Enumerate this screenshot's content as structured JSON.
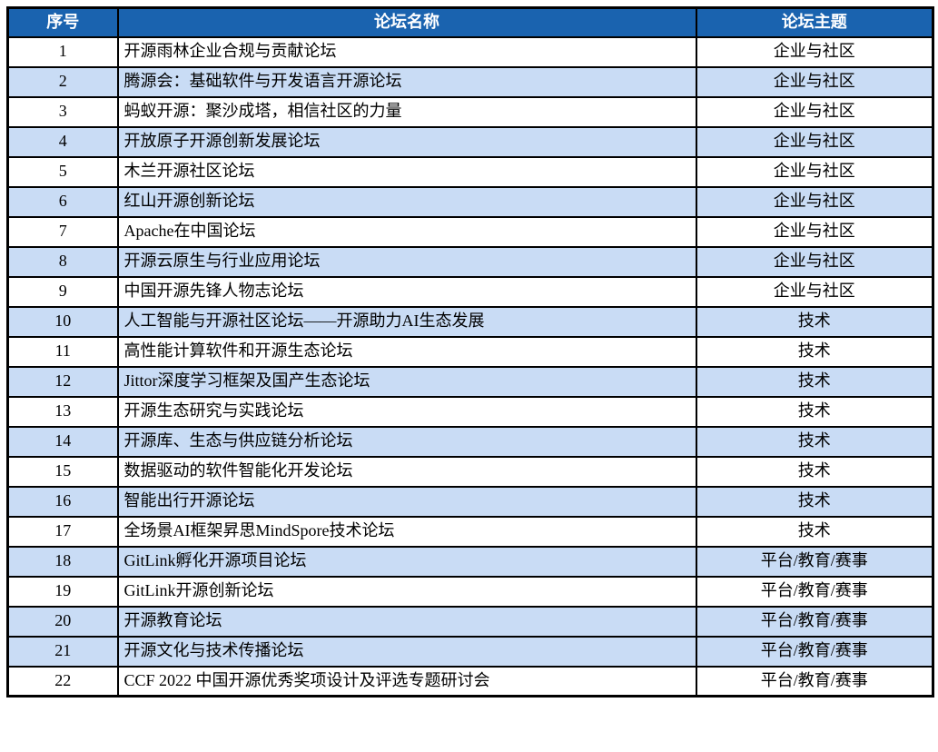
{
  "colors": {
    "header_bg": "#1a63af",
    "header_text": "#ffffff",
    "shaded_row_bg": "#c9dcf5",
    "row_bg": "#ffffff",
    "border": "#000000"
  },
  "table": {
    "columns": [
      {
        "key": "index",
        "label": "序号"
      },
      {
        "key": "name",
        "label": "论坛名称"
      },
      {
        "key": "theme",
        "label": "论坛主题"
      }
    ],
    "rows": [
      {
        "index": "1",
        "name": "开源雨林企业合规与贡献论坛",
        "theme": "企业与社区",
        "shaded": false
      },
      {
        "index": "2",
        "name": "腾源会：基础软件与开发语言开源论坛",
        "theme": "企业与社区",
        "shaded": true
      },
      {
        "index": "3",
        "name": "蚂蚁开源：聚沙成塔，相信社区的力量",
        "theme": "企业与社区",
        "shaded": false
      },
      {
        "index": "4",
        "name": "开放原子开源创新发展论坛",
        "theme": "企业与社区",
        "shaded": true
      },
      {
        "index": "5",
        "name": "木兰开源社区论坛",
        "theme": "企业与社区",
        "shaded": false
      },
      {
        "index": "6",
        "name": "红山开源创新论坛",
        "theme": "企业与社区",
        "shaded": true
      },
      {
        "index": "7",
        "name": "Apache在中国论坛",
        "theme": "企业与社区",
        "shaded": false
      },
      {
        "index": "8",
        "name": "开源云原生与行业应用论坛",
        "theme": "企业与社区",
        "shaded": true
      },
      {
        "index": "9",
        "name": "中国开源先锋人物志论坛",
        "theme": "企业与社区",
        "shaded": false
      },
      {
        "index": "10",
        "name": "人工智能与开源社区论坛——开源助力AI生态发展",
        "theme": "技术",
        "shaded": true
      },
      {
        "index": "11",
        "name": "高性能计算软件和开源生态论坛",
        "theme": "技术",
        "shaded": false
      },
      {
        "index": "12",
        "name": "Jittor深度学习框架及国产生态论坛",
        "theme": "技术",
        "shaded": true
      },
      {
        "index": "13",
        "name": "开源生态研究与实践论坛",
        "theme": "技术",
        "shaded": false
      },
      {
        "index": "14",
        "name": "开源库、生态与供应链分析论坛",
        "theme": "技术",
        "shaded": true
      },
      {
        "index": "15",
        "name": "数据驱动的软件智能化开发论坛",
        "theme": "技术",
        "shaded": false
      },
      {
        "index": "16",
        "name": "智能出行开源论坛",
        "theme": "技术",
        "shaded": true
      },
      {
        "index": "17",
        "name": "全场景AI框架昇思MindSpore技术论坛",
        "theme": "技术",
        "shaded": false
      },
      {
        "index": "18",
        "name": "GitLink孵化开源项目论坛",
        "theme": "平台/教育/赛事",
        "shaded": true
      },
      {
        "index": "19",
        "name": "GitLink开源创新论坛",
        "theme": "平台/教育/赛事",
        "shaded": false
      },
      {
        "index": "20",
        "name": "开源教育论坛",
        "theme": "平台/教育/赛事",
        "shaded": true
      },
      {
        "index": "21",
        "name": "开源文化与技术传播论坛",
        "theme": "平台/教育/赛事",
        "shaded": true
      },
      {
        "index": "22",
        "name": "CCF 2022 中国开源优秀奖项设计及评选专题研讨会",
        "theme": "平台/教育/赛事",
        "shaded": false
      }
    ]
  }
}
